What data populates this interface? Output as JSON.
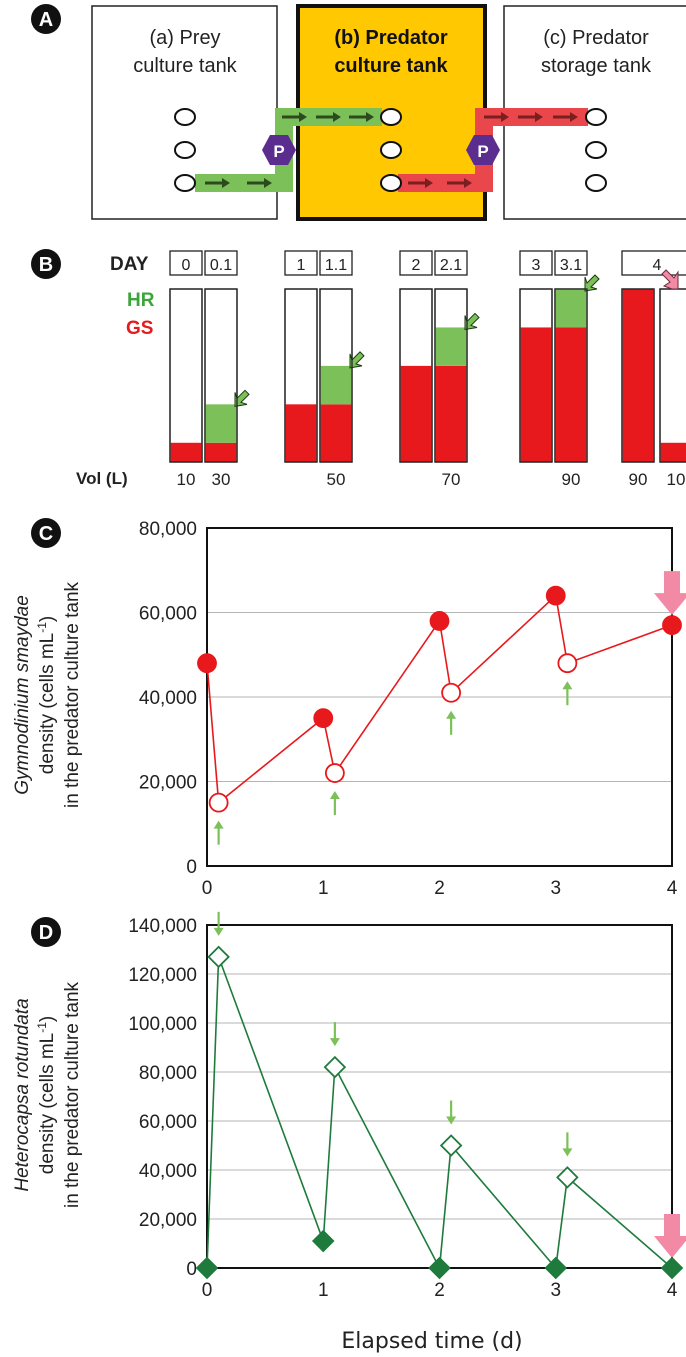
{
  "panels": {
    "a": "A",
    "b": "B",
    "c": "C",
    "d": "D"
  },
  "tanks": [
    {
      "line1": "(a) Prey",
      "line2": "culture tank"
    },
    {
      "line1": "(b) Predator",
      "line2": "culture tank"
    },
    {
      "line1": "(c) Predator",
      "line2": "storage tank"
    }
  ],
  "pump_label": "P",
  "colors": {
    "prey_green": "#7cc05a",
    "gs_red": "#e8191c",
    "transfer_red": "#e9474b",
    "tank_yellow": "#ffc800",
    "pump_purple": "#5b2d8e",
    "hr_green_line": "#1e7b3c",
    "pink_arrow": "#f28aa6"
  },
  "volume_panel": {
    "day_label": "DAY",
    "hr_label": "HR",
    "gs_label": "GS",
    "vol_label": "Vol (L)",
    "day_labels": [
      "0",
      "0.1",
      "1",
      "1.1",
      "2",
      "2.1",
      "3",
      "3.1",
      "4"
    ],
    "vol_labels": [
      "10",
      "30",
      "50",
      "70",
      "90",
      "90",
      "10"
    ],
    "bars": [
      {
        "gs": 10,
        "hr": 0
      },
      {
        "gs": 10,
        "hr": 20
      },
      {
        "gs": 30,
        "hr": 0
      },
      {
        "gs": 30,
        "hr": 20
      },
      {
        "gs": 50,
        "hr": 0
      },
      {
        "gs": 50,
        "hr": 20
      },
      {
        "gs": 70,
        "hr": 0
      },
      {
        "gs": 70,
        "hr": 20
      },
      {
        "gs": 90,
        "hr": 0
      },
      {
        "gs": 10,
        "hr": 0
      }
    ],
    "max_volume": 90
  },
  "chart_data": [
    {
      "type": "line",
      "ylabel_species": "Gymnodinium smaydae",
      "ylabel_line2": "density (cells mL",
      "ylabel_sup": "-1",
      "ylabel_line2_end": ")",
      "ylabel_line3": "in the predator culture tank",
      "ylim": [
        0,
        80000
      ],
      "yticks": [
        "0",
        "20,000",
        "40,000",
        "60,000",
        "80,000"
      ],
      "xlim": [
        0,
        4
      ],
      "xticks": [
        "0",
        "1",
        "2",
        "3",
        "4"
      ],
      "points": [
        {
          "x": 0,
          "y": 48000,
          "filled": true
        },
        {
          "x": 0.1,
          "y": 15000,
          "filled": false
        },
        {
          "x": 1,
          "y": 35000,
          "filled": true
        },
        {
          "x": 1.1,
          "y": 22000,
          "filled": false
        },
        {
          "x": 2,
          "y": 58000,
          "filled": true
        },
        {
          "x": 2.1,
          "y": 41000,
          "filled": false
        },
        {
          "x": 3,
          "y": 64000,
          "filled": true
        },
        {
          "x": 3.1,
          "y": 48000,
          "filled": false
        },
        {
          "x": 4,
          "y": 57000,
          "filled": true
        }
      ],
      "green_arrows_at": [
        0.1,
        1.1,
        2.1,
        3.1
      ],
      "pink_arrow_at": 4
    },
    {
      "type": "line",
      "ylabel_species": "Heterocapsa rotundata",
      "ylabel_line2": "density (cells mL",
      "ylabel_sup": "-1",
      "ylabel_line2_end": ")",
      "ylabel_line3": "in the predator culture tank",
      "xlabel": "Elapsed time (d)",
      "ylim": [
        0,
        140000
      ],
      "yticks": [
        "0",
        "20,000",
        "40,000",
        "60,000",
        "80,000",
        "100,000",
        "120,000",
        "140,000"
      ],
      "xlim": [
        0,
        4
      ],
      "xticks": [
        "0",
        "1",
        "2",
        "3",
        "4"
      ],
      "points": [
        {
          "x": 0,
          "y": 0,
          "filled": true
        },
        {
          "x": 0.1,
          "y": 127000,
          "filled": false
        },
        {
          "x": 1,
          "y": 11000,
          "filled": true
        },
        {
          "x": 1.1,
          "y": 82000,
          "filled": false
        },
        {
          "x": 2,
          "y": 0,
          "filled": true
        },
        {
          "x": 2.1,
          "y": 50000,
          "filled": false
        },
        {
          "x": 3,
          "y": 0,
          "filled": true
        },
        {
          "x": 3.1,
          "y": 37000,
          "filled": false
        },
        {
          "x": 4,
          "y": 0,
          "filled": true
        }
      ],
      "green_arrows_at": [
        0.1,
        1.1,
        2.1,
        3.1
      ],
      "pink_arrow_at": 4
    }
  ]
}
